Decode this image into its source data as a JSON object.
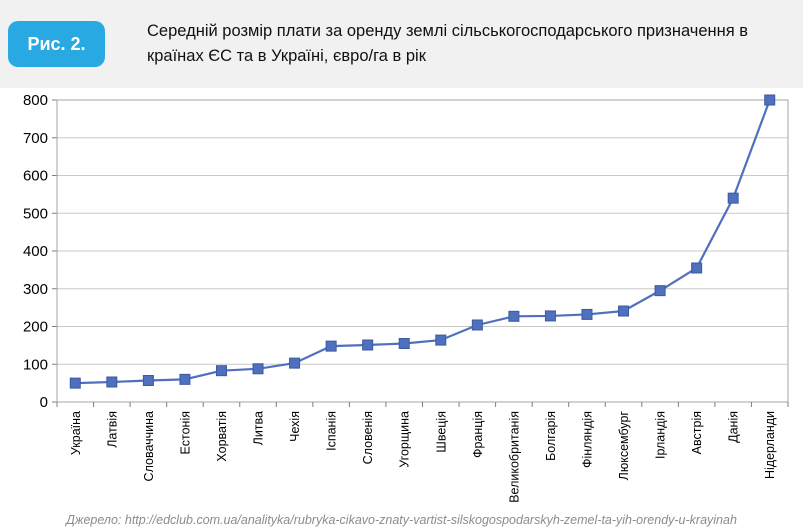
{
  "figure": {
    "badge": "Рис. 2.",
    "title": "Середній розмір плати за оренду землі сільськогосподарського призначення в країнах ЄС та в Україні, євро/га в рік"
  },
  "source": {
    "text": "Джерело:  http://edclub.com.ua/analityka/rubryka-cikavo-znaty-vartist-silskogospodarskyh-zemel-ta-yih-orendy-u-krayinah"
  },
  "colors": {
    "header_bg": "#f1f1f1",
    "badge_bg": "#29A9E1",
    "badge_text": "#ffffff",
    "line": "#4F6FBF",
    "marker_fill": "#4F6FBF",
    "marker_border": "#3C5A9E",
    "grid": "#c9c9c9",
    "plot_border": "#a6a6a6",
    "axis": "#7f7f7f",
    "tick_label": "#000000"
  },
  "chart_data": {
    "type": "line",
    "title": "Середній розмір плати за оренду землі сільськогосподарського призначення в країнах ЄС та в Україні, євро/га в рік",
    "xlabel": "",
    "ylabel": "євро/га в рік",
    "categories": [
      "Україна",
      "Латвія",
      "Словаччина",
      "Естонія",
      "Хорватія",
      "Литва",
      "Чехія",
      "Іспанія",
      "Словенія",
      "Угорщина",
      "Швеція",
      "Франція",
      "Великобританія",
      "Болгарія",
      "Фінляндія",
      "Люксембург",
      "Ірландія",
      "Австрія",
      "Данія",
      "Нідерланди"
    ],
    "values": [
      50,
      53,
      57,
      60,
      83,
      88,
      103,
      148,
      151,
      155,
      164,
      204,
      227,
      228,
      232,
      241,
      295,
      355,
      540,
      800
    ],
    "ylim": [
      0,
      800
    ],
    "ytick_step": 100,
    "grid": true,
    "legend": false,
    "marker": "square"
  }
}
